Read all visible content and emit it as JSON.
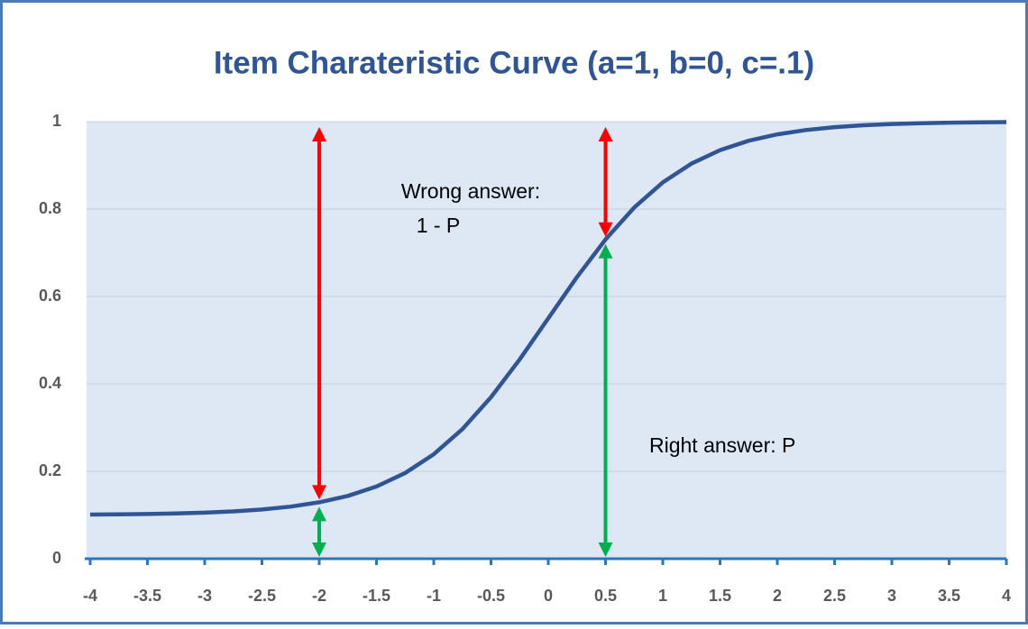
{
  "chart_data": {
    "type": "line",
    "title": "Item Charateristic Curve (a=1, b=0, c=.1)",
    "x": [
      -4,
      -3.75,
      -3.5,
      -3.25,
      -3,
      -2.75,
      -2.5,
      -2.25,
      -2,
      -1.75,
      -1.5,
      -1.25,
      -1,
      -0.75,
      -0.5,
      -0.25,
      0,
      0.25,
      0.5,
      0.75,
      1,
      1.25,
      1.5,
      1.75,
      2,
      2.25,
      2.5,
      2.75,
      3,
      3.25,
      3.5,
      3.75,
      4
    ],
    "series": [
      {
        "color": "#2f5597",
        "values": [
          0.101,
          0.1015,
          0.1023,
          0.1036,
          0.1055,
          0.1083,
          0.1127,
          0.1192,
          0.1291,
          0.1437,
          0.1652,
          0.196,
          0.239,
          0.2965,
          0.3695,
          0.4558,
          0.55,
          0.6442,
          0.7305,
          0.8034,
          0.861,
          0.904,
          0.9348,
          0.9563,
          0.9709,
          0.9808,
          0.9873,
          0.9917,
          0.9945,
          0.9964,
          0.9977,
          0.9985,
          0.999
        ]
      }
    ],
    "xlim": [
      -4,
      4
    ],
    "xticks": [
      -4,
      -3.5,
      -3,
      -2.5,
      -2,
      -1.5,
      -1,
      -0.5,
      0,
      0.5,
      1,
      1.5,
      2,
      2.5,
      3,
      3.5,
      4
    ],
    "ylim": [
      0,
      1
    ],
    "yticks": [
      0,
      0.2,
      0.4,
      0.6,
      0.8,
      1
    ],
    "grid": true,
    "arrow_x": [
      -2,
      0.5
    ],
    "wrong_color": "#ff0000",
    "right_color": "#00b050",
    "annotations": {
      "wrong_line1": "Wrong answer:",
      "wrong_line2": "1 - P",
      "right": "Right answer: P"
    }
  }
}
